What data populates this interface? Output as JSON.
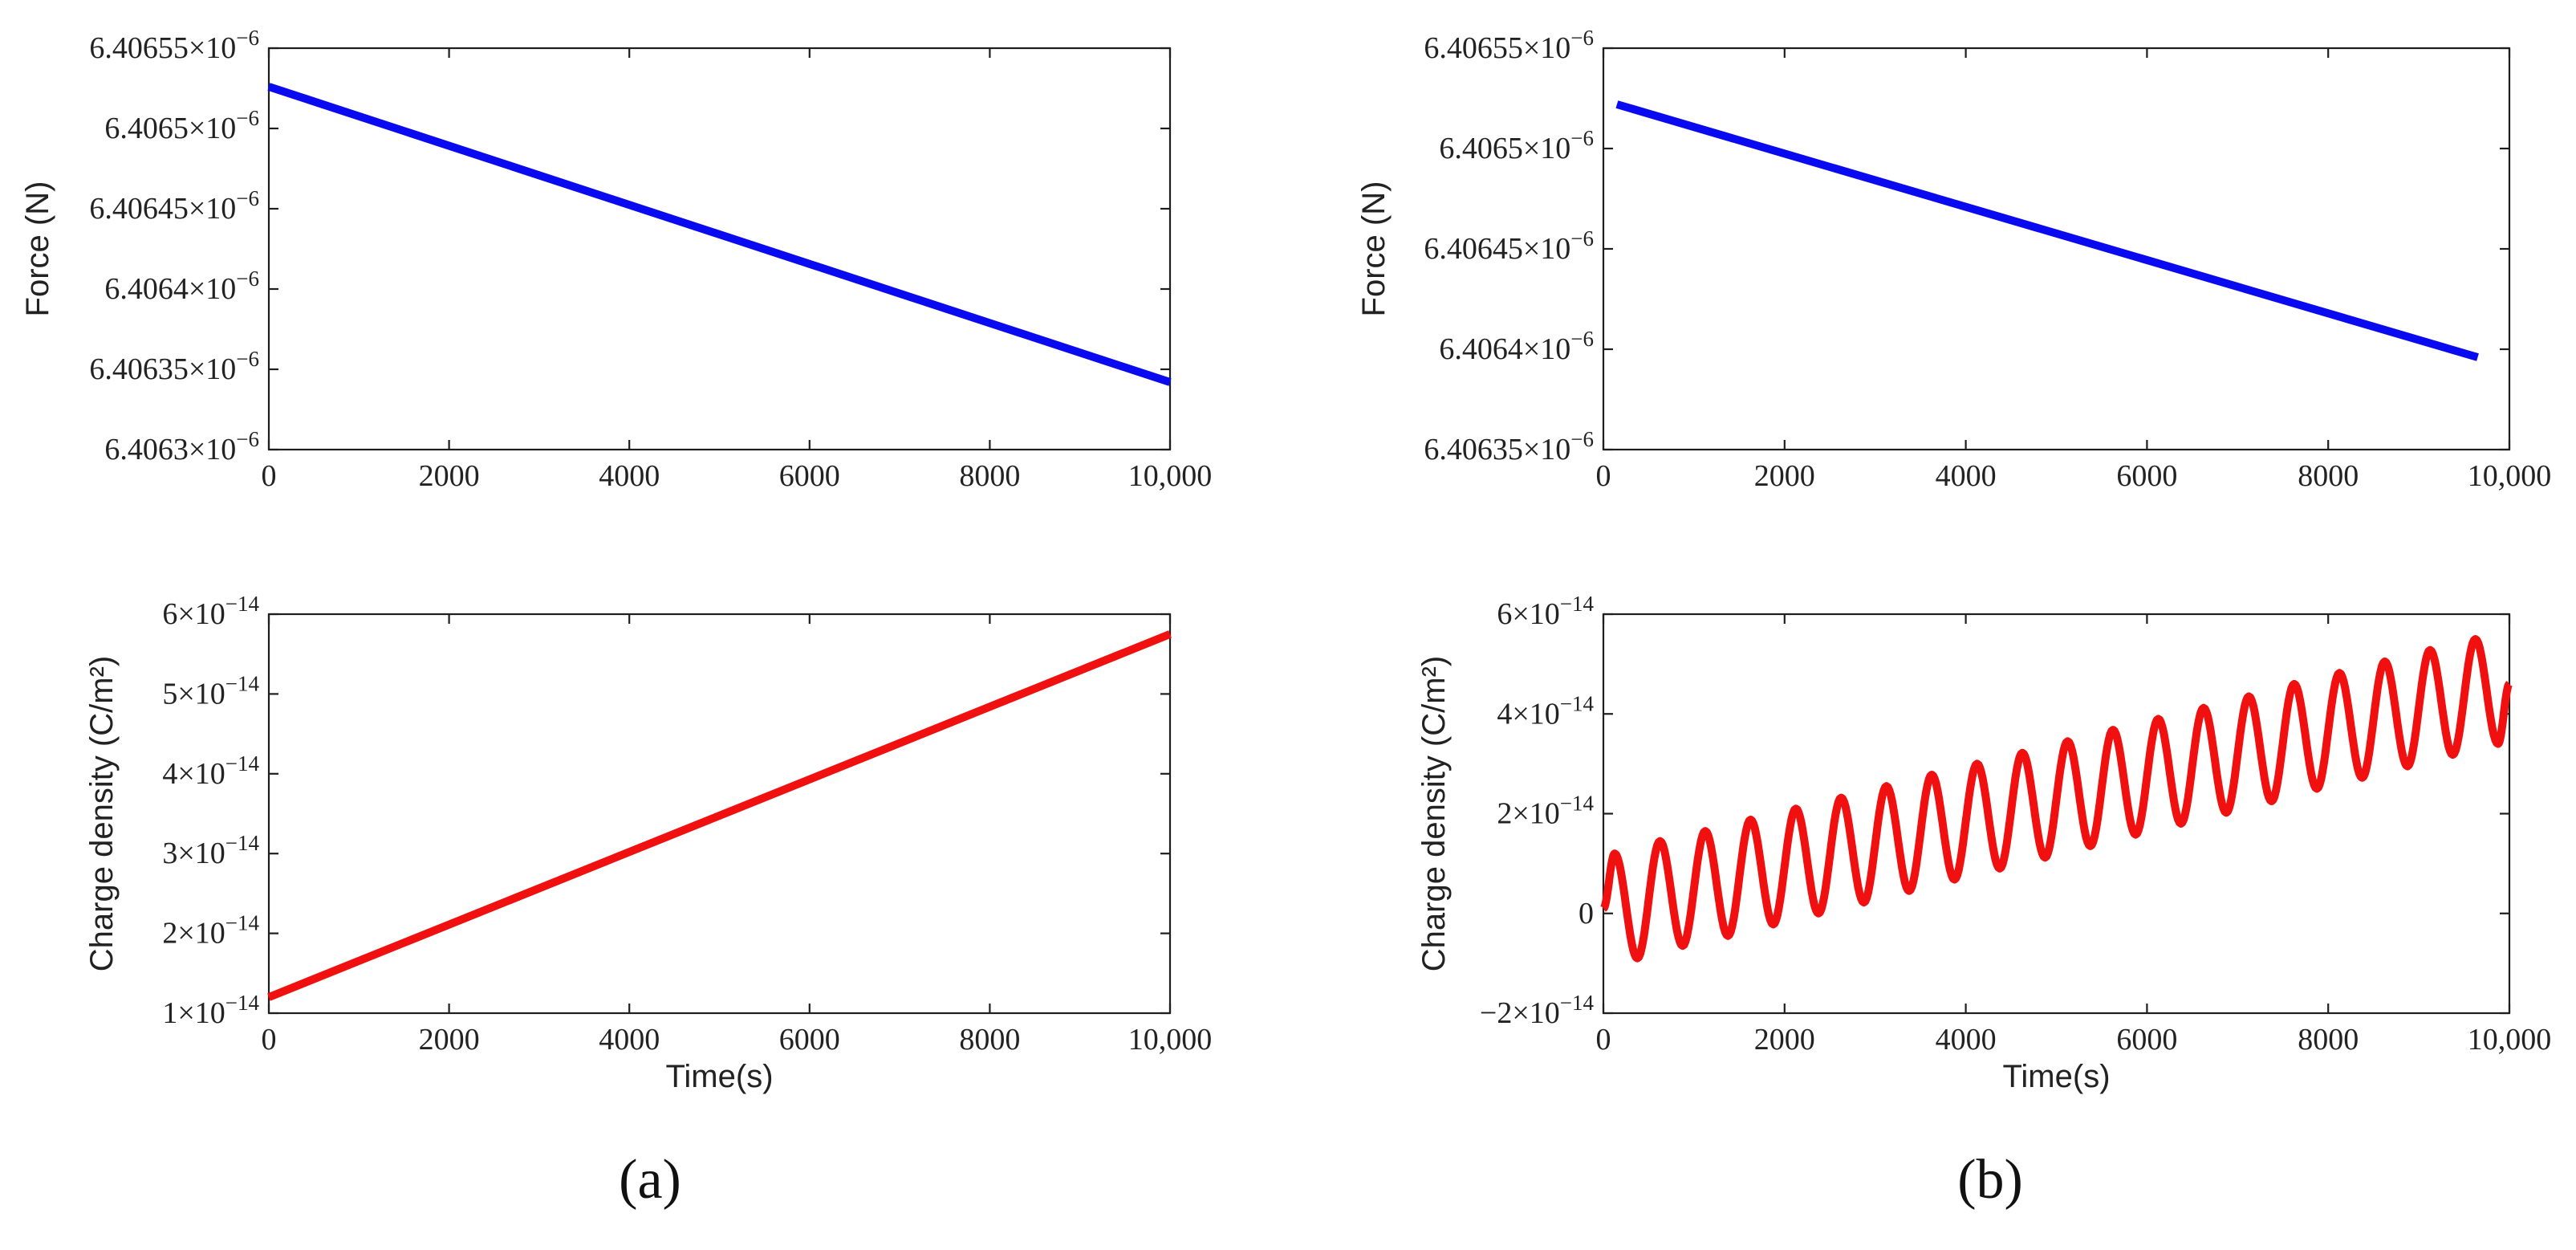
{
  "figure": {
    "panel_labels": [
      "(a)",
      "(b)"
    ]
  },
  "chart_data": [
    {
      "type": "line",
      "panel": "(a)",
      "position": "top-left",
      "title": "",
      "xlabel": "",
      "ylabel": "Force (N)",
      "xlim": [
        0,
        10000
      ],
      "ylim": [
        6.4063e-06,
        6.40655e-06
      ],
      "x_ticks": [
        0,
        2000,
        4000,
        6000,
        8000,
        10000
      ],
      "x_tick_labels": [
        "0",
        "2000",
        "4000",
        "6000",
        "8000",
        "10,000"
      ],
      "y_ticks": [
        6.4063e-06,
        6.40635e-06,
        6.4064e-06,
        6.40645e-06,
        6.4065e-06,
        6.40655e-06
      ],
      "y_tick_labels": [
        {
          "mantissa": "6.4063×10",
          "exp": "−6"
        },
        {
          "mantissa": "6.40635×10",
          "exp": "−6"
        },
        {
          "mantissa": "6.4064×10",
          "exp": "−6"
        },
        {
          "mantissa": "6.40645×10",
          "exp": "−6"
        },
        {
          "mantissa": "6.4065×10",
          "exp": "−6"
        },
        {
          "mantissa": "6.40655×10",
          "exp": "−6"
        }
      ],
      "series": [
        {
          "name": "Force",
          "color": "#0a0af0",
          "x": [
            0,
            10000
          ],
          "y": [
            6.406526e-06,
            6.406342e-06
          ]
        }
      ],
      "grid": false
    },
    {
      "type": "line",
      "panel": "(a)",
      "position": "bottom-left",
      "title": "",
      "xlabel": "Time(s)",
      "ylabel": "Charge density (C/m²)",
      "xlim": [
        0,
        10000
      ],
      "ylim": [
        1e-14,
        6e-14
      ],
      "x_ticks": [
        0,
        2000,
        4000,
        6000,
        8000,
        10000
      ],
      "x_tick_labels": [
        "0",
        "2000",
        "4000",
        "6000",
        "8000",
        "10,000"
      ],
      "y_ticks": [
        1e-14,
        2e-14,
        3e-14,
        4e-14,
        5e-14,
        6e-14
      ],
      "y_tick_labels": [
        {
          "mantissa": "1×10",
          "exp": "−14"
        },
        {
          "mantissa": "2×10",
          "exp": "−14"
        },
        {
          "mantissa": "3×10",
          "exp": "−14"
        },
        {
          "mantissa": "4×10",
          "exp": "−14"
        },
        {
          "mantissa": "5×10",
          "exp": "−14"
        },
        {
          "mantissa": "6×10",
          "exp": "−14"
        }
      ],
      "series": [
        {
          "name": "Charge density",
          "color": "#f01010",
          "x": [
            0,
            10000
          ],
          "y": [
            1.2e-14,
            5.75e-14
          ]
        }
      ],
      "grid": false
    },
    {
      "type": "line",
      "panel": "(b)",
      "position": "top-right",
      "title": "",
      "xlabel": "",
      "ylabel": "Force (N)",
      "xlim": [
        0,
        10000
      ],
      "ylim": [
        6.40635e-06,
        6.40655e-06
      ],
      "x_ticks": [
        0,
        2000,
        4000,
        6000,
        8000,
        10000
      ],
      "x_tick_labels": [
        "0",
        "2000",
        "4000",
        "6000",
        "8000",
        "10,000"
      ],
      "y_ticks": [
        6.40635e-06,
        6.4064e-06,
        6.40645e-06,
        6.4065e-06,
        6.40655e-06
      ],
      "y_tick_labels": [
        {
          "mantissa": "6.40635×10",
          "exp": "−6"
        },
        {
          "mantissa": "6.4064×10",
          "exp": "−6"
        },
        {
          "mantissa": "6.40645×10",
          "exp": "−6"
        },
        {
          "mantissa": "6.4065×10",
          "exp": "−6"
        },
        {
          "mantissa": "6.40655×10",
          "exp": "−6"
        }
      ],
      "series": [
        {
          "name": "Force",
          "color": "#0a0af0",
          "x": [
            150,
            9650
          ],
          "y": [
            6.406522e-06,
            6.406396e-06
          ]
        }
      ],
      "grid": false
    },
    {
      "type": "line",
      "panel": "(b)",
      "position": "bottom-right",
      "title": "",
      "xlabel": "Time(s)",
      "ylabel": "Charge density (C/m²)",
      "xlim": [
        0,
        10000
      ],
      "ylim": [
        -2e-14,
        6e-14
      ],
      "x_ticks": [
        0,
        2000,
        4000,
        6000,
        8000,
        10000
      ],
      "x_tick_labels": [
        "0",
        "2000",
        "4000",
        "6000",
        "8000",
        "10,000"
      ],
      "y_ticks": [
        -2e-14,
        0,
        2e-14,
        4e-14,
        6e-14
      ],
      "y_tick_labels": [
        {
          "mantissa": "−2×10",
          "exp": "−14"
        },
        {
          "mantissa": "0",
          "exp": ""
        },
        {
          "mantissa": "2×10",
          "exp": "−14"
        },
        {
          "mantissa": "4×10",
          "exp": "−14"
        },
        {
          "mantissa": "6×10",
          "exp": "−14"
        }
      ],
      "series": [
        {
          "name": "Charge density",
          "color": "#f01010",
          "x": [
            0,
            125,
            375,
            625,
            875,
            1125,
            1375,
            1625,
            1875,
            2125,
            2375,
            2625,
            2875,
            3125,
            3375,
            3625,
            3875,
            4125,
            4375,
            4625,
            4875,
            5125,
            5375,
            5625,
            5875,
            6125,
            6375,
            6625,
            6875,
            7125,
            7375,
            7625,
            7875,
            8125,
            8375,
            8625,
            8875,
            9125,
            9375,
            9625,
            9875,
            10000
          ],
          "y": [
            1e-15,
            1.2e-14,
            -9e-15,
            1.45e-14,
            -6.5e-15,
            1.65e-14,
            -4.5e-15,
            1.88e-14,
            -2.2e-15,
            2.1e-14,
            0.0,
            2.32e-14,
            2.2e-15,
            2.55e-14,
            4.5e-15,
            2.78e-14,
            6.8e-15,
            3e-14,
            9e-15,
            3.22e-14,
            1.12e-14,
            3.45e-14,
            1.35e-14,
            3.68e-14,
            1.58e-14,
            3.9e-14,
            1.8e-14,
            4.12e-14,
            2.02e-14,
            4.35e-14,
            2.25e-14,
            4.6e-14,
            2.5e-14,
            4.82e-14,
            2.72e-14,
            5.05e-14,
            2.95e-14,
            5.28e-14,
            3.18e-14,
            5.5e-14,
            3.4e-14,
            4.6e-14
          ]
        }
      ],
      "grid": false
    }
  ]
}
